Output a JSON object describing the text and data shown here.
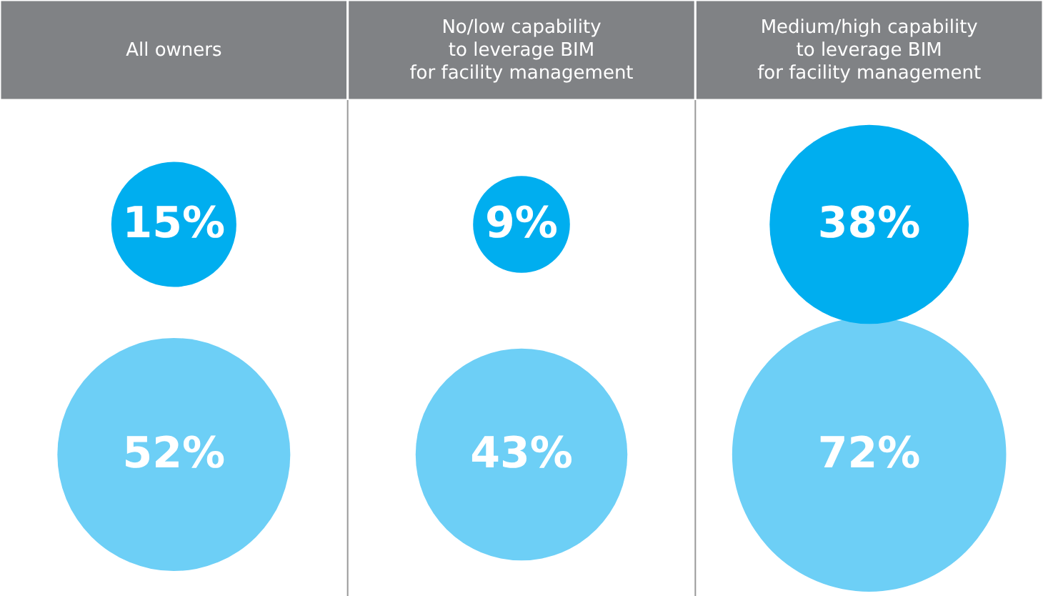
{
  "chart_data": {
    "type": "other",
    "categories": [
      "All owners",
      "No/low capability\nto leverage BIM\nfor facility management",
      "Medium/high capability\nto leverage BIM\nfor facility management"
    ],
    "series": [
      {
        "type": "bubble",
        "color": "#00aeef",
        "values": [
          15,
          9,
          38
        ],
        "value_labels": [
          "15%",
          "9%",
          "38%"
        ]
      },
      {
        "type": "bubble",
        "color": "#6dcff6",
        "values": [
          52,
          43,
          72
        ],
        "value_labels": [
          "52%",
          "43%",
          "72%"
        ]
      }
    ]
  }
}
